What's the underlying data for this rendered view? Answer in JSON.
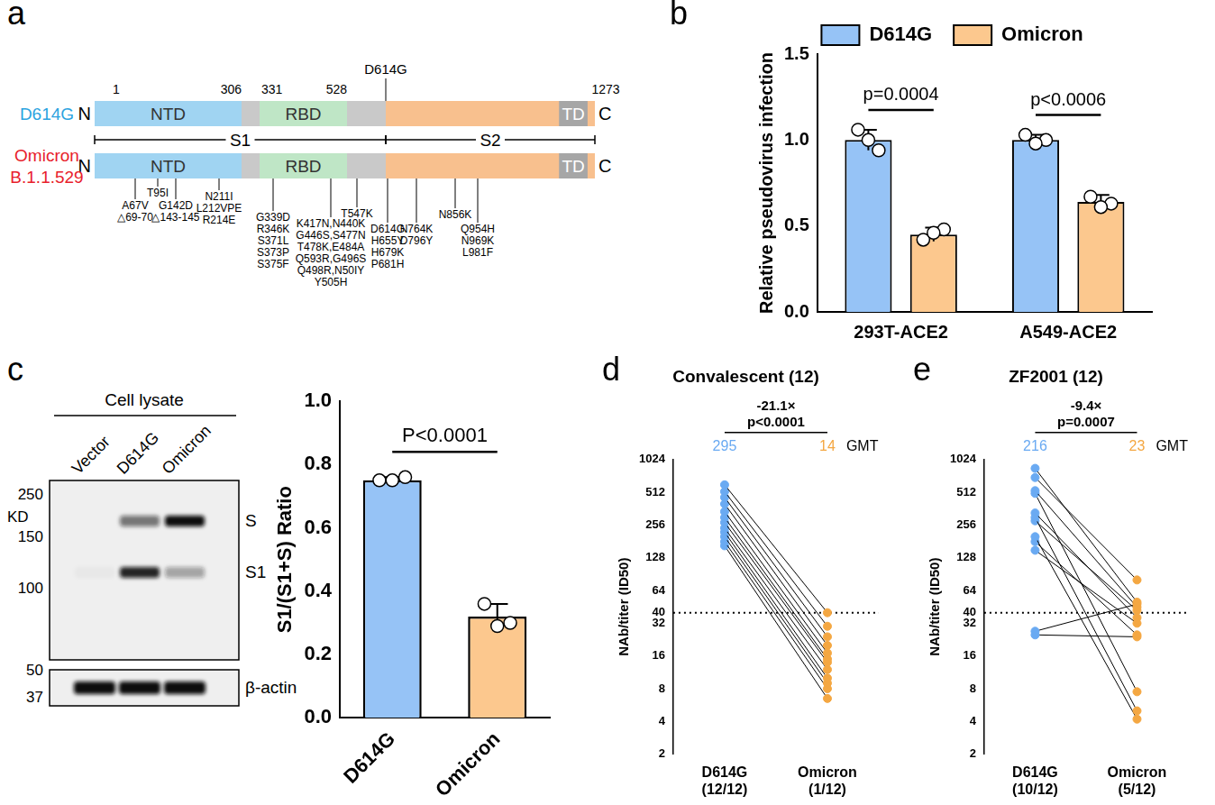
{
  "spike_diagram": {
    "panel": "a",
    "variants": [
      {
        "name": "D614G",
        "color": "#2ba3e0"
      },
      {
        "name": "Omicron",
        "subname": "B.1.1.529",
        "color": "#e8212b"
      }
    ],
    "terminals": [
      "N",
      "C"
    ],
    "length_ticks": [
      1,
      306,
      331,
      528,
      1273
    ],
    "marker": {
      "label": "D614G",
      "position": 614
    },
    "domains": [
      {
        "label": "NTD",
        "start": 1,
        "end": 306,
        "color": "#a0d4f2"
      },
      {
        "label": "RBD",
        "start": 331,
        "end": 528,
        "color": "#bfe6c6"
      },
      {
        "start": 614,
        "end": 1273,
        "color": "#f8c08e"
      },
      {
        "label": "TD",
        "start": 1160,
        "end": 1250,
        "color": "#a6a6a6"
      }
    ],
    "subunits": [
      {
        "label": "S1",
        "start": 1,
        "end": 614
      },
      {
        "label": "S2",
        "start": 614,
        "end": 1273
      }
    ],
    "mutation_groups": [
      [
        "A67V",
        "△69-70"
      ],
      [
        "T95I"
      ],
      [
        "G142D",
        "△143-145"
      ],
      [
        "N211I",
        "L212VPE",
        "R214E"
      ],
      [
        "G339D",
        "R346K",
        "S371L",
        "S373P",
        "S375F"
      ],
      [
        "K417N,N440K",
        "G446S,S477N",
        "T478K,E484A",
        "Q593R,G496S",
        "Q498R,N50IY",
        "Y505H"
      ],
      [
        "T547K"
      ],
      [
        "D614G",
        "H655Y",
        "H679K",
        "P681H"
      ],
      [
        "N764K",
        "D796Y"
      ],
      [
        "N856K"
      ],
      [
        "Q954H",
        "N969K",
        "L981F"
      ]
    ]
  },
  "western_blot": {
    "panel": "c",
    "header": "Cell lysate",
    "lanes": [
      "Vector",
      "D614G",
      "Omicron"
    ],
    "unit": "KD",
    "markers": [
      250,
      150,
      100,
      50,
      37
    ],
    "bands": [
      {
        "label": "S",
        "intensities": [
          0,
          0.55,
          1
        ]
      },
      {
        "label": "S1",
        "intensities": [
          0.03,
          0.9,
          0.35
        ]
      }
    ],
    "loading_control": {
      "label": "β-actin",
      "intensities": [
        1,
        1,
        1
      ]
    }
  },
  "chart_data": [
    {
      "panel": "b",
      "type": "bar",
      "categories": [
        "293T-ACE2",
        "A549-ACE2"
      ],
      "series": [
        {
          "name": "D614G",
          "color": "#96c3f6",
          "values": [
            1.0,
            1.0
          ],
          "errors": [
            0.06,
            0.03
          ],
          "points": [
            [
              1.06,
              0.94,
              1.0
            ],
            [
              1.03,
              1.0,
              0.98
            ]
          ]
        },
        {
          "name": "Omicron",
          "color": "#fcc88e",
          "values": [
            0.45,
            0.64
          ],
          "errors": [
            0.04,
            0.04
          ],
          "points": [
            [
              0.42,
              0.48,
              0.46
            ],
            [
              0.67,
              0.63,
              0.61
            ]
          ]
        }
      ],
      "y_label": "Relative pseudovirus infection",
      "ylim": [
        0,
        1.5
      ],
      "yticks": [
        {
          "value": 0,
          "label": "0.0"
        },
        {
          "value": 0.5,
          "label": "0.5"
        },
        {
          "value": 1,
          "label": "1.0"
        },
        {
          "value": 1.5,
          "label": "1.5"
        }
      ],
      "annotations": [
        "p=0.0004",
        "p<0.0006"
      ],
      "legend": "top",
      "grid": false
    },
    {
      "type": "bar",
      "categories": [
        "D614G",
        "Omicron"
      ],
      "values": [
        0.75,
        0.32
      ],
      "colors": [
        "#96c3f6",
        "#fcc88e"
      ],
      "errors": [
        0.01,
        0.04
      ],
      "points": [
        [
          0.75,
          0.76,
          0.75
        ],
        [
          0.36,
          0.3,
          0.29
        ]
      ],
      "y_label": "S1/(S1+S) Ratio",
      "ylim": [
        0,
        1
      ],
      "yticks": [
        {
          "value": 0,
          "label": "0.0"
        },
        {
          "value": 0.2,
          "label": "0.2"
        },
        {
          "value": 0.4,
          "label": "0.4"
        },
        {
          "value": 0.6,
          "label": "0.6"
        },
        {
          "value": 0.8,
          "label": "0.8"
        },
        {
          "value": 1,
          "label": "1.0"
        }
      ],
      "annotations": [
        "P<0.0001"
      ],
      "grid": false
    },
    {
      "panel": "d",
      "type": "line",
      "title": "Convalescent (12)",
      "categories": [
        "D614G",
        "Omicron"
      ],
      "counts": [
        "(12/12)",
        "(1/12)"
      ],
      "colors": [
        "#6aaaf2",
        "#f4a742"
      ],
      "values": [
        [
          600,
          520,
          460,
          400,
          340,
          300,
          270,
          240,
          220,
          200,
          180,
          165
        ],
        [
          40,
          30,
          24,
          20,
          17,
          15,
          14,
          12,
          10,
          9,
          8,
          6.5
        ]
      ],
      "gmt": [
        295,
        14
      ],
      "gmt_label": "GMT",
      "annotations": [
        "-21.1×",
        "p<0.0001"
      ],
      "threshold": 40,
      "y_label": "NAb/titer (ID50)",
      "log": "y",
      "ylim": [
        2,
        1024
      ],
      "yticks": [
        2,
        4,
        8,
        16,
        32,
        40,
        64,
        128,
        256,
        512,
        1024
      ],
      "line_style": "solid",
      "marker": "circle",
      "grid": false
    },
    {
      "panel": "e",
      "type": "line",
      "title": "ZF2001 (12)",
      "categories": [
        "D614G",
        "Omicron"
      ],
      "counts": [
        "(10/12)",
        "(5/12)"
      ],
      "colors": [
        "#6aaaf2",
        "#f4a742"
      ],
      "values": [
        [
          850,
          700,
          530,
          500,
          330,
          300,
          280,
          200,
          180,
          150,
          27,
          25
        ],
        [
          50,
          80,
          45,
          7.5,
          36,
          5,
          42,
          4.2,
          25,
          32,
          48,
          24
        ]
      ],
      "gmt": [
        216,
        23
      ],
      "gmt_label": "GMT",
      "annotations": [
        "-9.4×",
        "p=0.0007"
      ],
      "threshold": 40,
      "y_label": "NAb/titer (ID50)",
      "log": "y",
      "ylim": [
        2,
        1024
      ],
      "yticks": [
        2,
        4,
        8,
        16,
        32,
        40,
        64,
        128,
        256,
        512,
        1024
      ],
      "line_style": "solid",
      "marker": "circle",
      "grid": false
    }
  ]
}
